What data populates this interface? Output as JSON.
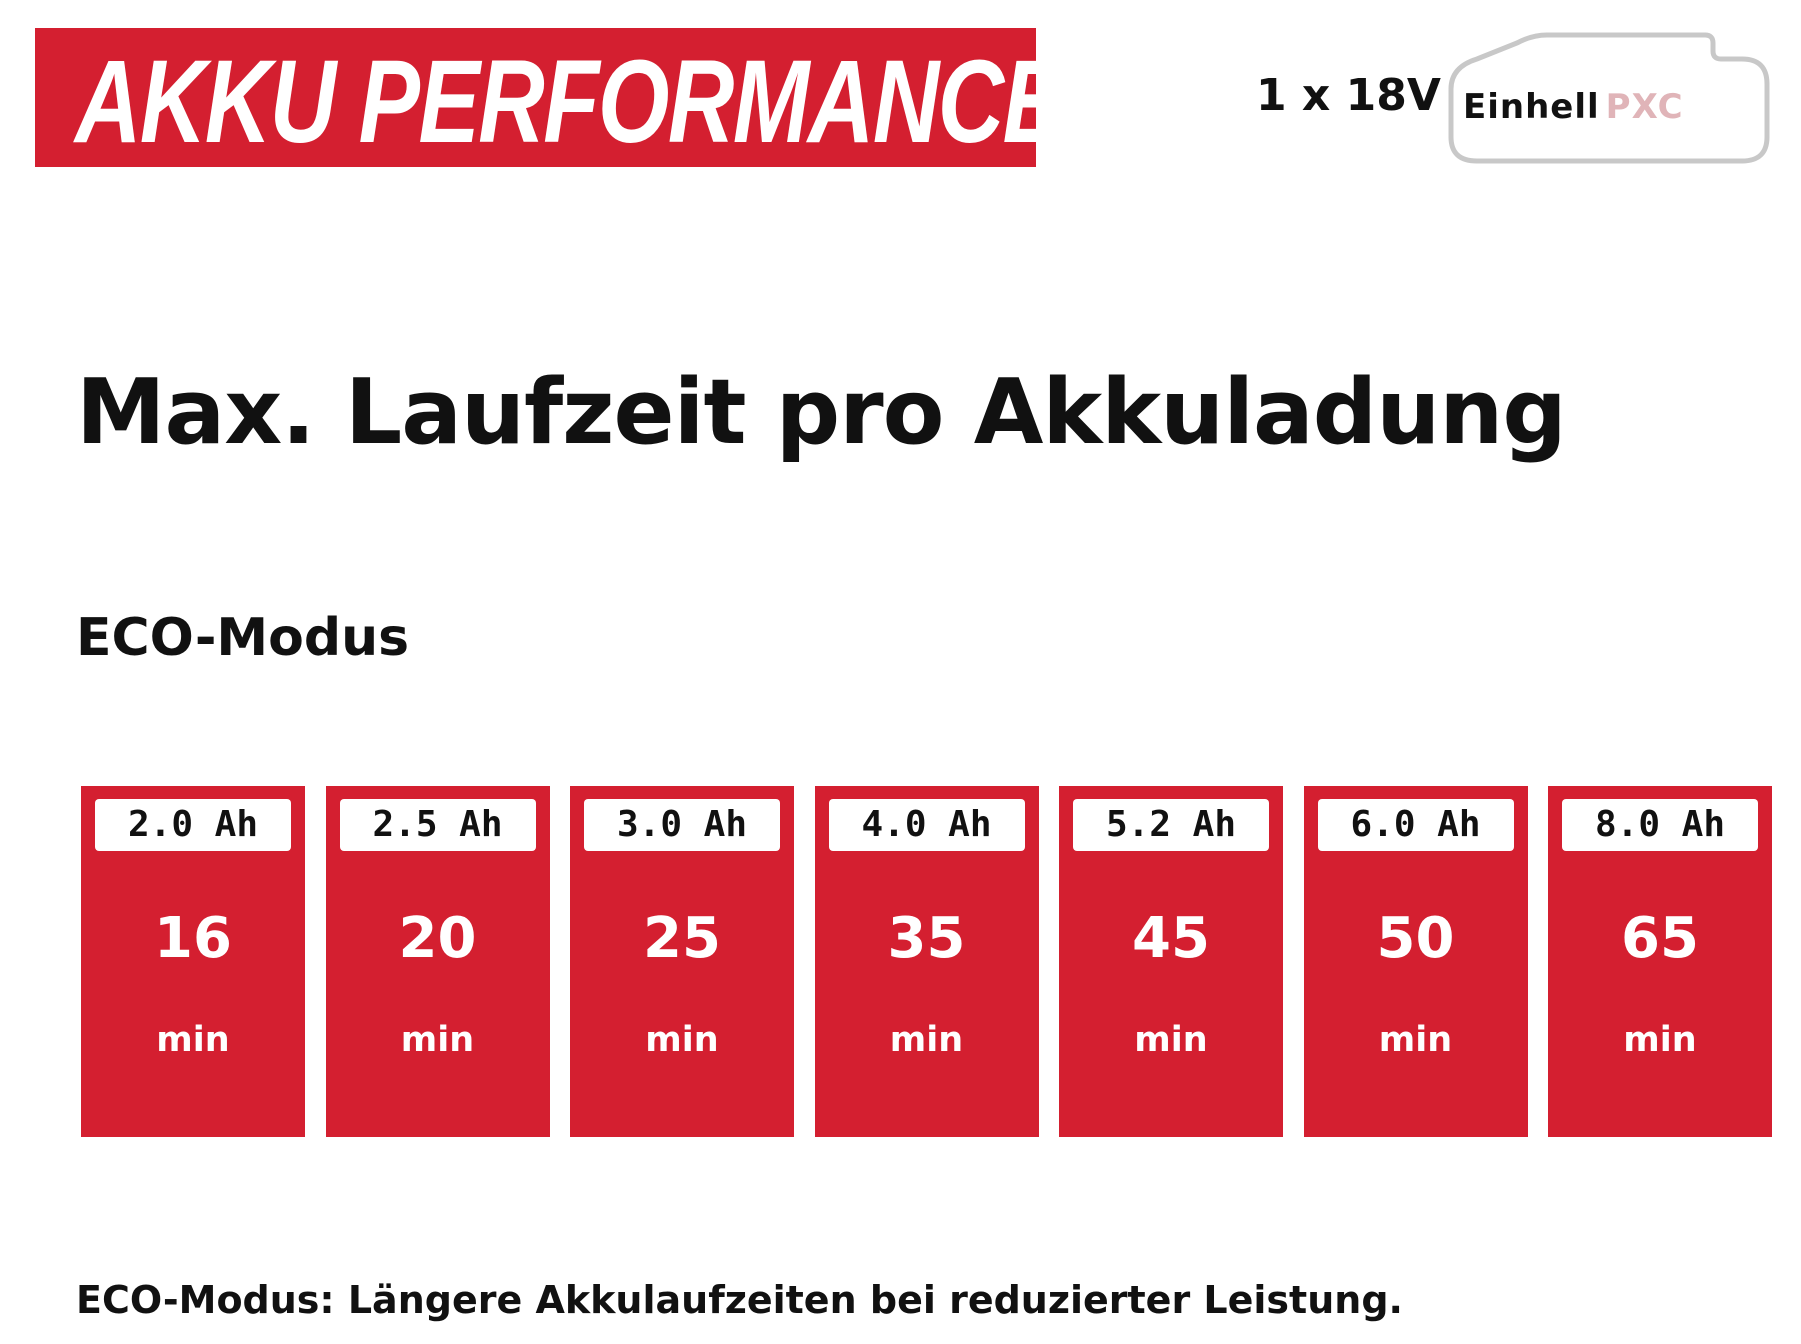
{
  "header": {
    "title": "AKKU PERFORMANCE",
    "voltage": "1 x 18V",
    "logo": {
      "brand": "Einhell",
      "suffix": "PXC"
    }
  },
  "heading": "Max. Laufzeit pro Akkuladung",
  "mode": "ECO-Modus",
  "cards": [
    {
      "capacity": "2.0 Ah",
      "runtime": 16,
      "unit": "min"
    },
    {
      "capacity": "2.5 Ah",
      "runtime": 20,
      "unit": "min"
    },
    {
      "capacity": "3.0 Ah",
      "runtime": 25,
      "unit": "min"
    },
    {
      "capacity": "4.0 Ah",
      "runtime": 35,
      "unit": "min"
    },
    {
      "capacity": "5.2 Ah",
      "runtime": 45,
      "unit": "min"
    },
    {
      "capacity": "6.0 Ah",
      "runtime": 50,
      "unit": "min"
    },
    {
      "capacity": "8.0 Ah",
      "runtime": 65,
      "unit": "min"
    }
  ],
  "footnote": "ECO-Modus: Längere Akkulaufzeiten bei reduzierter Leistung."
}
